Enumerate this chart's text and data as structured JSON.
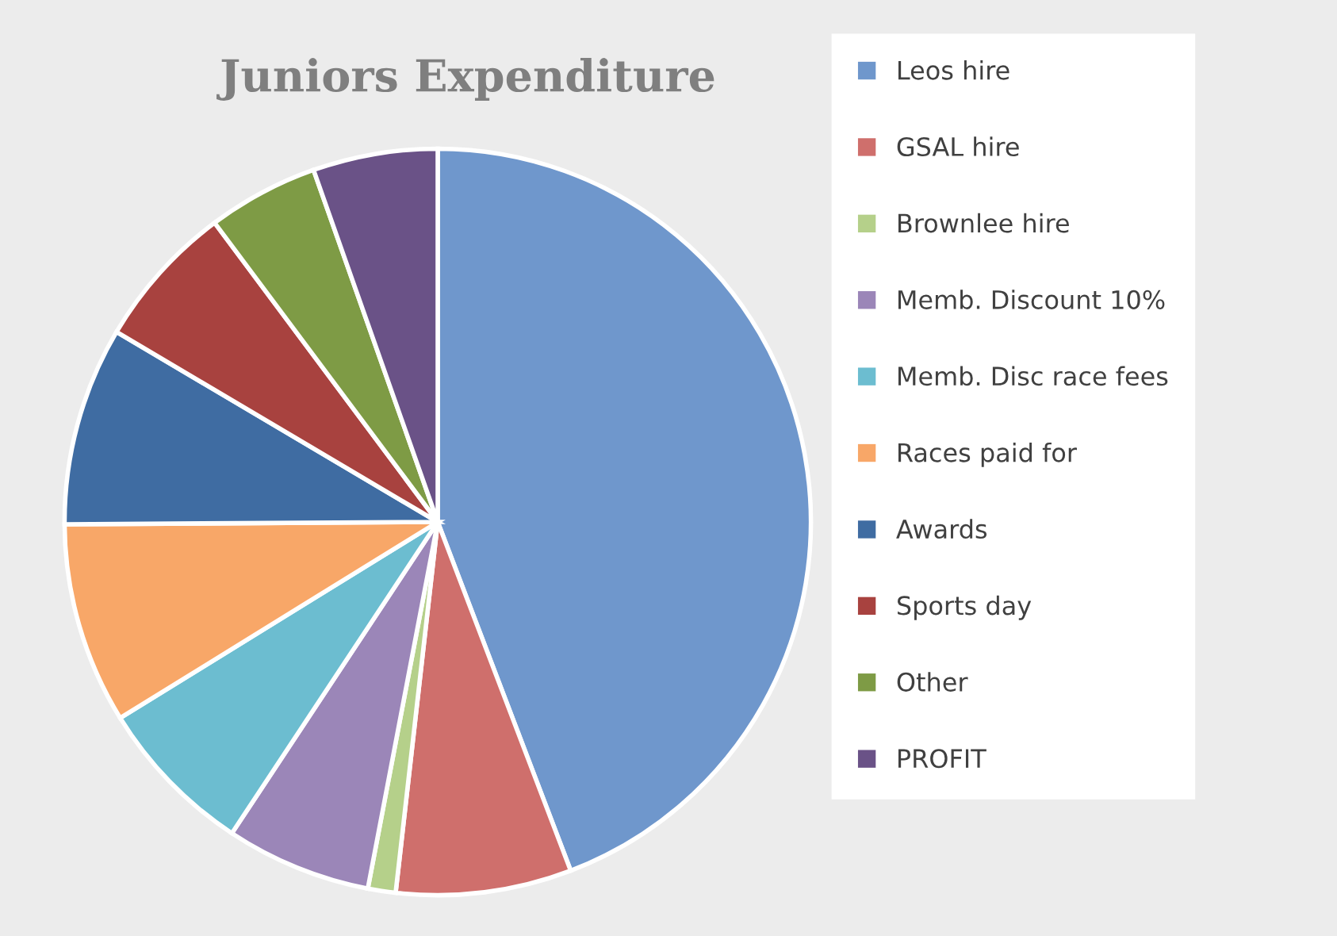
{
  "chart_data": {
    "type": "pie",
    "title": "Juniors Expenditure",
    "categories": [
      "Leos hire",
      "GSAL hire",
      "Brownlee hire",
      "Memb. Discount 10%",
      "Memb. Disc race fees",
      "Races paid for",
      "Awards",
      "Sports day",
      "Other",
      "PROFIT"
    ],
    "values": [
      44.2,
      7.6,
      1.2,
      6.3,
      6.9,
      8.7,
      8.6,
      6.3,
      4.8,
      5.4
    ],
    "colors": [
      "#6f97cc",
      "#cf6f6c",
      "#b5d08a",
      "#9b86b8",
      "#6cbdd0",
      "#f8a768",
      "#3f6ca2",
      "#a8423f",
      "#7e9b45",
      "#6a5287"
    ],
    "legend": "right"
  }
}
